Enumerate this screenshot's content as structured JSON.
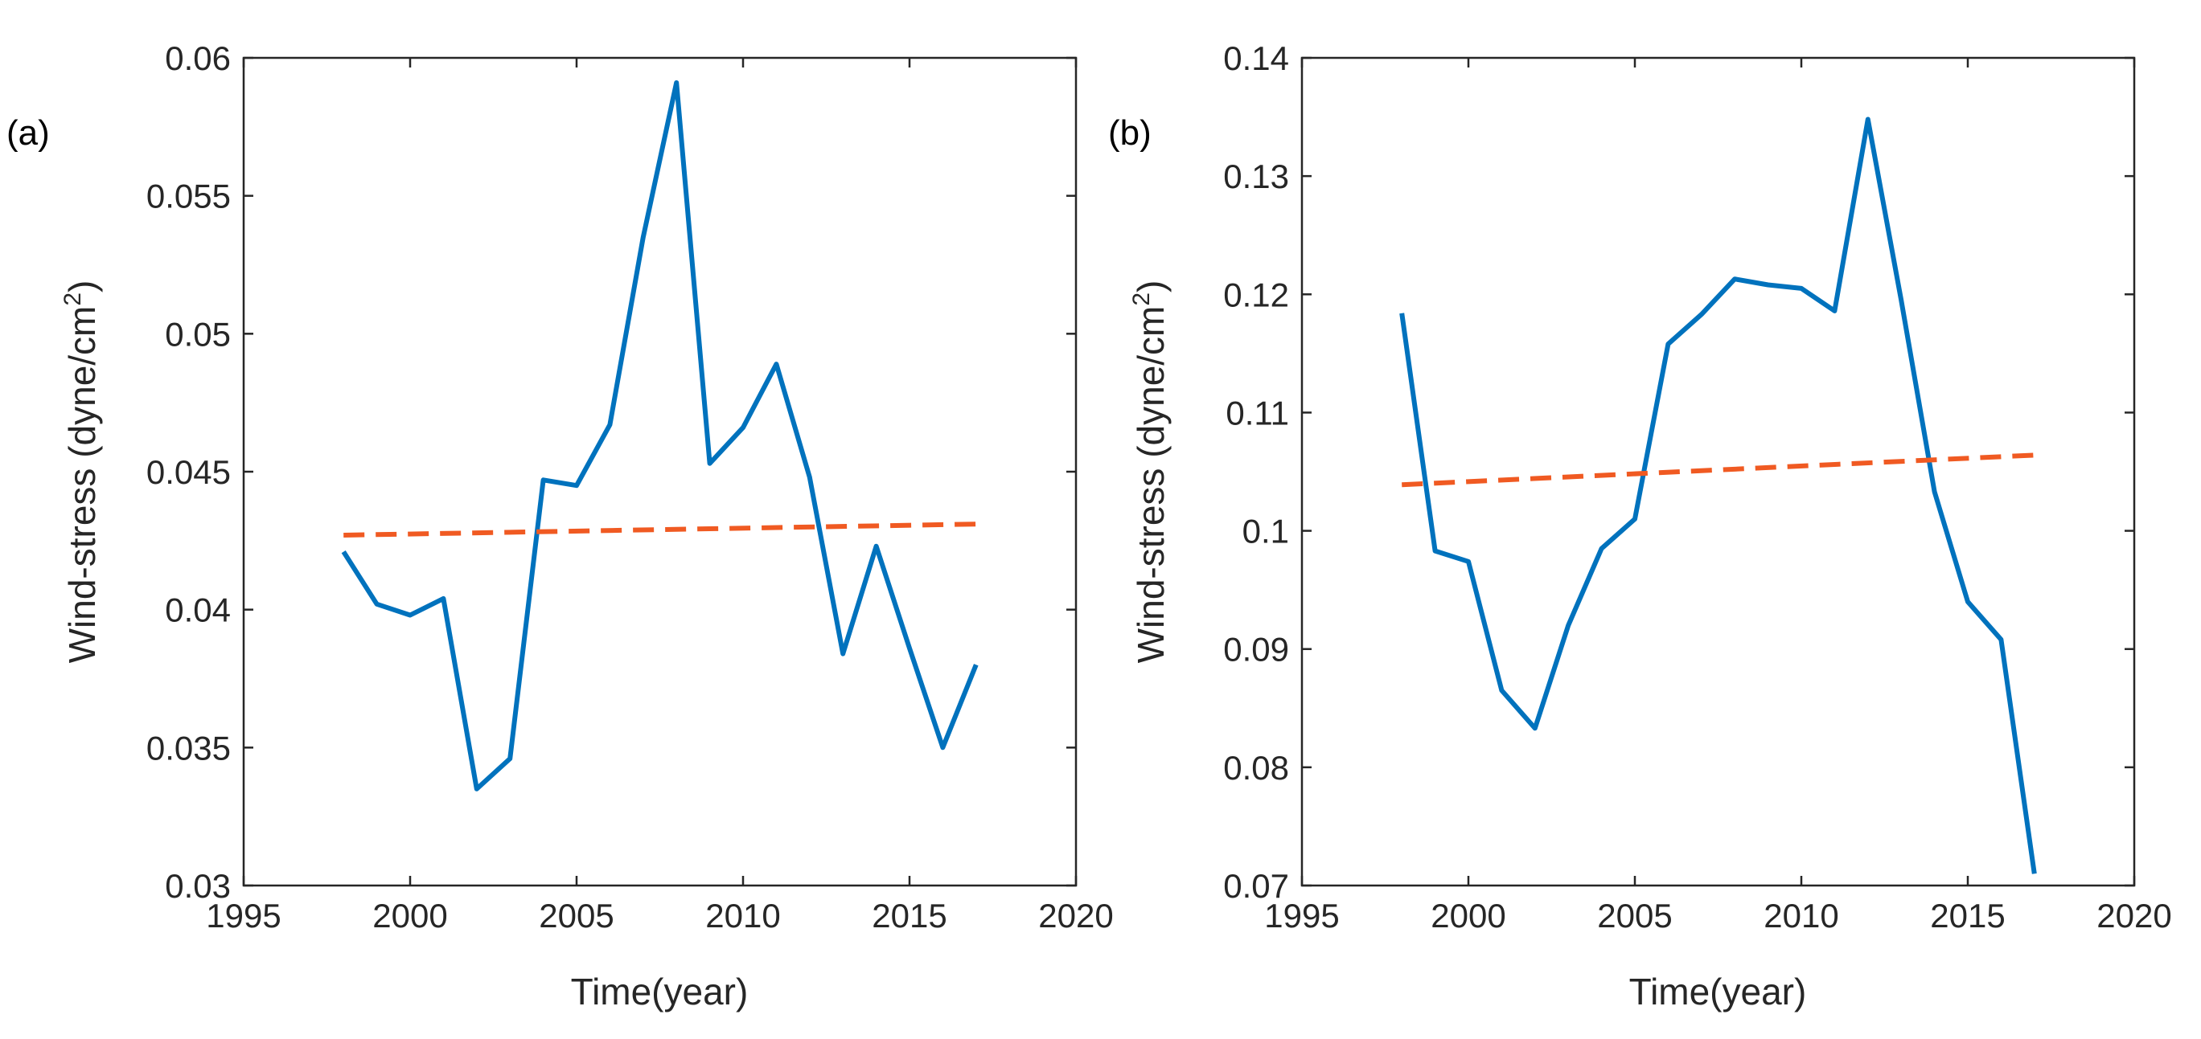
{
  "chart_data": [
    {
      "type": "line",
      "panel_label": "(a)",
      "xlabel": "Time(year)",
      "ylabel_main": "Wind-stress (dyne/cm",
      "ylabel_sup": "2",
      "ylabel_close": ")",
      "xlim": [
        1995,
        2020
      ],
      "ylim": [
        0.03,
        0.06
      ],
      "xticks": [
        1995,
        2000,
        2005,
        2010,
        2015,
        2020
      ],
      "xtick_labels": [
        "1995",
        "2000",
        "2005",
        "2010",
        "2015",
        "2020"
      ],
      "yticks": [
        0.03,
        0.035,
        0.04,
        0.045,
        0.05,
        0.055,
        0.06
      ],
      "ytick_labels": [
        "0.03",
        "0.035",
        "0.04",
        "0.045",
        "0.05",
        "0.055",
        "0.06"
      ],
      "series": [
        {
          "name": "wind-stress",
          "style": "solid",
          "color": "#0072BD",
          "x": [
            1998,
            1999,
            2000,
            2001,
            2002,
            2003,
            2004,
            2005,
            2006,
            2007,
            2008,
            2009,
            2010,
            2011,
            2012,
            2013,
            2014,
            2015,
            2016,
            2017
          ],
          "y": [
            0.0421,
            0.0402,
            0.0398,
            0.0404,
            0.0335,
            0.0346,
            0.0447,
            0.0445,
            0.0467,
            0.0535,
            0.0591,
            0.0453,
            0.0466,
            0.0489,
            0.0448,
            0.0384,
            0.0423,
            0.0386,
            0.035,
            0.038
          ]
        },
        {
          "name": "trend",
          "style": "dashed",
          "color": "#F05A22",
          "x": [
            1998,
            2017
          ],
          "y": [
            0.0427,
            0.0431
          ]
        }
      ]
    },
    {
      "type": "line",
      "panel_label": "(b)",
      "xlabel": "Time(year)",
      "ylabel_main": "Wind-stress (dyne/cm",
      "ylabel_sup": "2",
      "ylabel_close": ")",
      "xlim": [
        1995,
        2020
      ],
      "ylim": [
        0.07,
        0.14
      ],
      "xticks": [
        1995,
        2000,
        2005,
        2010,
        2015,
        2020
      ],
      "xtick_labels": [
        "1995",
        "2000",
        "2005",
        "2010",
        "2015",
        "2020"
      ],
      "yticks": [
        0.07,
        0.08,
        0.09,
        0.1,
        0.11,
        0.12,
        0.13,
        0.14
      ],
      "ytick_labels": [
        "0.07",
        "0.08",
        "0.09",
        "0.1",
        "0.11",
        "0.12",
        "0.13",
        "0.14"
      ],
      "series": [
        {
          "name": "wind-stress",
          "style": "solid",
          "color": "#0072BD",
          "x": [
            1998,
            1999,
            2000,
            2001,
            2002,
            2003,
            2004,
            2005,
            2006,
            2007,
            2008,
            2009,
            2010,
            2011,
            2012,
            2013,
            2014,
            2015,
            2016,
            2017
          ],
          "y": [
            0.1184,
            0.0983,
            0.0974,
            0.0865,
            0.0833,
            0.092,
            0.0985,
            0.101,
            0.1158,
            0.1183,
            0.1213,
            0.1208,
            0.1205,
            0.1186,
            0.1348,
            0.1195,
            0.1033,
            0.094,
            0.0908,
            0.071
          ]
        },
        {
          "name": "trend",
          "style": "dashed",
          "color": "#F05A22",
          "x": [
            1998,
            2017
          ],
          "y": [
            0.1039,
            0.1064
          ]
        }
      ]
    }
  ]
}
